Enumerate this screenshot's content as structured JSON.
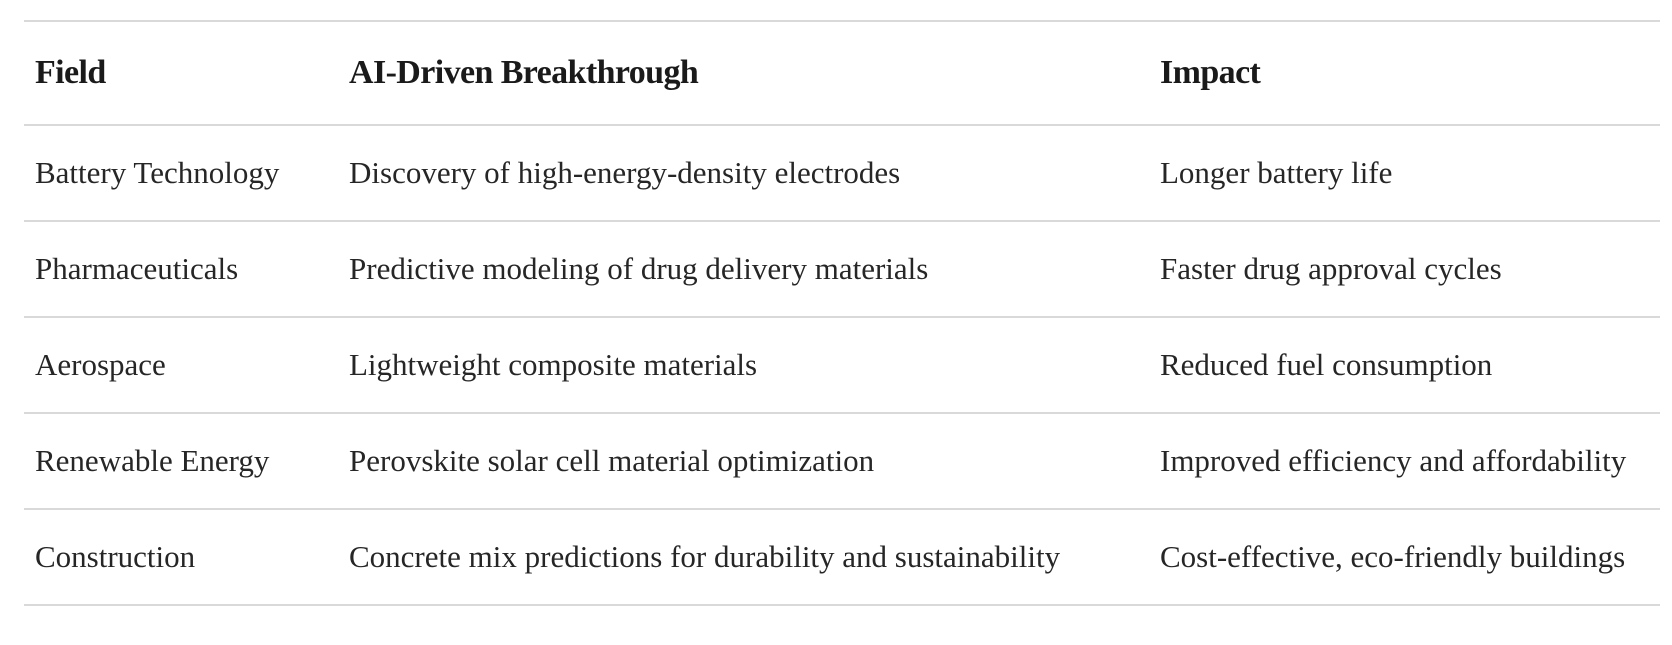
{
  "table": {
    "headers": {
      "field": "Field",
      "breakthrough": "AI-Driven Breakthrough",
      "impact": "Impact"
    },
    "rows": [
      {
        "field": "Battery Technology",
        "breakthrough": "Discovery of high-energy-density electrodes",
        "impact": "Longer battery life"
      },
      {
        "field": "Pharmaceuticals",
        "breakthrough": "Predictive modeling of drug delivery materials",
        "impact": "Faster drug approval cycles"
      },
      {
        "field": "Aerospace",
        "breakthrough": "Lightweight composite materials",
        "impact": "Reduced fuel consumption"
      },
      {
        "field": "Renewable Energy",
        "breakthrough": "Perovskite solar cell material optimization",
        "impact": "Improved efficiency and affordability"
      },
      {
        "field": "Construction",
        "breakthrough": "Concrete mix predictions for durability and sustainability",
        "impact": "Cost-effective, eco-friendly buildings"
      }
    ]
  }
}
